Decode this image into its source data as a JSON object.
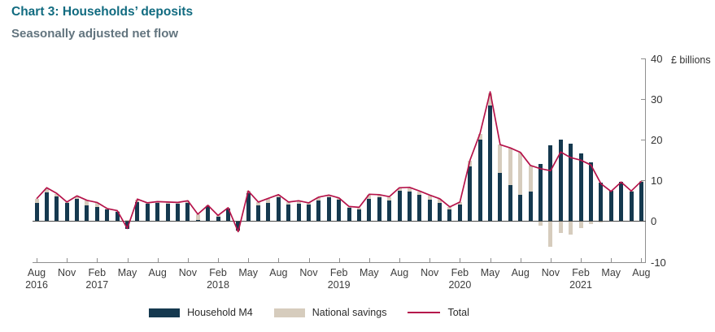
{
  "header": {
    "title": "Chart 3: Households’ deposits",
    "subtitle": "Seasonally adjusted net flow"
  },
  "chart_data": {
    "type": "bar",
    "subtype": "stacked-bars-with-total-line",
    "title": "Chart 3: Households’ deposits",
    "subtitle": "Seasonally adjusted net flow",
    "ylabel": "£ billions",
    "ylim": [
      -10,
      40
    ],
    "yticks": [
      40,
      30,
      20,
      10,
      0,
      -10
    ],
    "grid": false,
    "legend_position": "bottom",
    "categories": [
      "Aug 2016",
      "Sep 2016",
      "Oct 2016",
      "Nov 2016",
      "Dec 2016",
      "Jan 2017",
      "Feb 2017",
      "Mar 2017",
      "Apr 2017",
      "May 2017",
      "Jun 2017",
      "Jul 2017",
      "Aug 2017",
      "Sep 2017",
      "Oct 2017",
      "Nov 2017",
      "Dec 2017",
      "Jan 2018",
      "Feb 2018",
      "Mar 2018",
      "Apr 2018",
      "May 2018",
      "Jun 2018",
      "Jul 2018",
      "Aug 2018",
      "Sep 2018",
      "Oct 2018",
      "Nov 2018",
      "Dec 2018",
      "Jan 2019",
      "Feb 2019",
      "Mar 2019",
      "Apr 2019",
      "May 2019",
      "Jun 2019",
      "Jul 2019",
      "Aug 2019",
      "Sep 2019",
      "Oct 2019",
      "Nov 2019",
      "Dec 2019",
      "Jan 2020",
      "Feb 2020",
      "Mar 2020",
      "Apr 2020",
      "May 2020",
      "Jun 2020",
      "Jul 2020",
      "Aug 2020",
      "Sep 2020",
      "Oct 2020",
      "Nov 2020",
      "Dec 2020",
      "Jan 2021",
      "Feb 2021",
      "Mar 2021",
      "Apr 2021",
      "May 2021",
      "Jun 2021",
      "Jul 2021",
      "Aug 2021"
    ],
    "series": [
      {
        "name": "Household M4",
        "color": "#15394f",
        "values": [
          4.5,
          7.0,
          6.0,
          4.5,
          5.5,
          3.8,
          3.5,
          2.8,
          2.3,
          -2.0,
          4.6,
          4.2,
          4.5,
          4.2,
          4.2,
          4.4,
          0.3,
          3.7,
          1.0,
          3.0,
          -2.3,
          6.8,
          3.8,
          4.5,
          5.9,
          4.0,
          4.3,
          4.0,
          5.0,
          5.8,
          5.2,
          3.2,
          2.9,
          5.4,
          5.8,
          5.0,
          7.4,
          7.2,
          6.5,
          5.2,
          4.4,
          2.8,
          4.0,
          13.4,
          20.0,
          28.5,
          11.8,
          8.8,
          6.5,
          7.2,
          14.0,
          18.7,
          20.0,
          19.0,
          16.7,
          14.4,
          9.5,
          7.5,
          9.6,
          7.2,
          9.6
        ]
      },
      {
        "name": "National savings",
        "color": "#d6ccbd",
        "values": [
          1.0,
          1.0,
          0.7,
          0.1,
          0.6,
          1.2,
          1.0,
          0.2,
          0.2,
          0.2,
          0.7,
          0.2,
          0.2,
          0.4,
          0.4,
          0.6,
          1.4,
          0.1,
          0.4,
          0.3,
          -0.3,
          0.6,
          0.8,
          1.0,
          0.5,
          0.6,
          0.6,
          0.4,
          0.8,
          0.5,
          0.4,
          0.3,
          0.4,
          1.0,
          0.6,
          0.9,
          0.7,
          0.9,
          0.8,
          1.0,
          1.0,
          0.6,
          0.6,
          1.5,
          1.5,
          3.0,
          7.0,
          9.2,
          10.4,
          6.5,
          -1.2,
          -6.3,
          -3.0,
          -3.4,
          -1.7,
          -0.7,
          -0.4,
          -0.2,
          0.0,
          0.2,
          0.2
        ]
      }
    ],
    "line_series": {
      "name": "Total",
      "color": "#b5134a",
      "values": [
        5.5,
        8.2,
        6.8,
        4.7,
        6.2,
        5.1,
        4.6,
        3.1,
        2.6,
        -1.8,
        5.4,
        4.5,
        4.8,
        4.7,
        4.6,
        5.0,
        1.7,
        3.9,
        1.4,
        3.3,
        -2.6,
        7.4,
        4.7,
        5.6,
        6.5,
        4.7,
        5.0,
        4.5,
        5.9,
        6.4,
        5.7,
        3.6,
        3.4,
        6.6,
        6.5,
        6.0,
        8.2,
        8.3,
        7.4,
        6.4,
        5.5,
        3.5,
        4.7,
        15.0,
        21.6,
        31.8,
        18.8,
        18.0,
        16.9,
        13.7,
        12.9,
        12.4,
        17.0,
        15.6,
        15.0,
        13.8,
        9.2,
        7.3,
        9.6,
        7.4,
        9.8
      ]
    },
    "x_ticks": [
      {
        "i": 0,
        "m": "Aug",
        "y": "2016"
      },
      {
        "i": 3,
        "m": "Nov"
      },
      {
        "i": 6,
        "m": "Feb",
        "y": "2017"
      },
      {
        "i": 9,
        "m": "May"
      },
      {
        "i": 12,
        "m": "Aug"
      },
      {
        "i": 15,
        "m": "Nov"
      },
      {
        "i": 18,
        "m": "Feb",
        "y": "2018"
      },
      {
        "i": 21,
        "m": "May"
      },
      {
        "i": 24,
        "m": "Aug"
      },
      {
        "i": 27,
        "m": "Nov"
      },
      {
        "i": 30,
        "m": "Feb",
        "y": "2019"
      },
      {
        "i": 33,
        "m": "May"
      },
      {
        "i": 36,
        "m": "Aug"
      },
      {
        "i": 39,
        "m": "Nov"
      },
      {
        "i": 42,
        "m": "Feb",
        "y": "2020"
      },
      {
        "i": 45,
        "m": "May"
      },
      {
        "i": 48,
        "m": "Aug"
      },
      {
        "i": 51,
        "m": "Nov"
      },
      {
        "i": 54,
        "m": "Feb",
        "y": "2021"
      },
      {
        "i": 57,
        "m": "May"
      },
      {
        "i": 60,
        "m": "Aug"
      }
    ],
    "legend": [
      {
        "label": "Household M4",
        "color": "#15394f",
        "kind": "swatch"
      },
      {
        "label": "National savings",
        "color": "#d6ccbd",
        "kind": "swatch"
      },
      {
        "label": "Total",
        "color": "#b5134a",
        "kind": "line"
      }
    ]
  }
}
